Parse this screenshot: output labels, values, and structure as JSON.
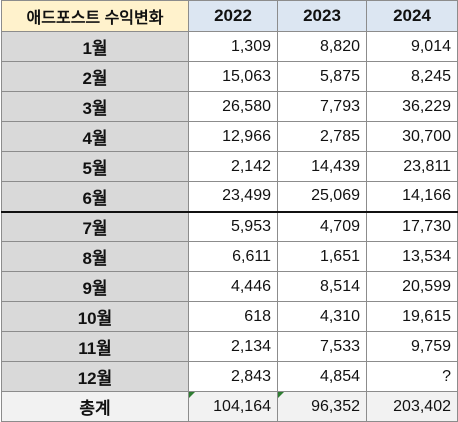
{
  "table": {
    "corner_label": "애드포스트 수익변화",
    "years": [
      "2022",
      "2023",
      "2024"
    ],
    "rows": [
      {
        "label": "1월",
        "values": [
          "1,309",
          "8,820",
          "9,014"
        ]
      },
      {
        "label": "2월",
        "values": [
          "15,063",
          "5,875",
          "8,245"
        ]
      },
      {
        "label": "3월",
        "values": [
          "26,580",
          "7,793",
          "36,229"
        ]
      },
      {
        "label": "4월",
        "values": [
          "12,966",
          "2,785",
          "30,700"
        ]
      },
      {
        "label": "5월",
        "values": [
          "2,142",
          "14,439",
          "23,811"
        ]
      },
      {
        "label": "6월",
        "values": [
          "23,499",
          "25,069",
          "14,166"
        ]
      },
      {
        "label": "7월",
        "values": [
          "5,953",
          "4,709",
          "17,730"
        ]
      },
      {
        "label": "8월",
        "values": [
          "6,611",
          "1,651",
          "13,534"
        ]
      },
      {
        "label": "9월",
        "values": [
          "4,446",
          "8,514",
          "20,599"
        ]
      },
      {
        "label": "10월",
        "values": [
          "618",
          "4,310",
          "19,615"
        ]
      },
      {
        "label": "11월",
        "values": [
          "2,134",
          "7,533",
          "9,759"
        ]
      },
      {
        "label": "12월",
        "values": [
          "2,843",
          "4,854",
          "?"
        ]
      }
    ],
    "total": {
      "label": "총계",
      "values": [
        "104,164",
        "96,352",
        "203,402"
      ]
    }
  },
  "colors": {
    "header_corner": "#fff2cc",
    "header_year": "#dce6f2",
    "row_label": "#d9d9d9",
    "total_row": "#f2f2f2",
    "error_marker": "#2e7d32"
  }
}
